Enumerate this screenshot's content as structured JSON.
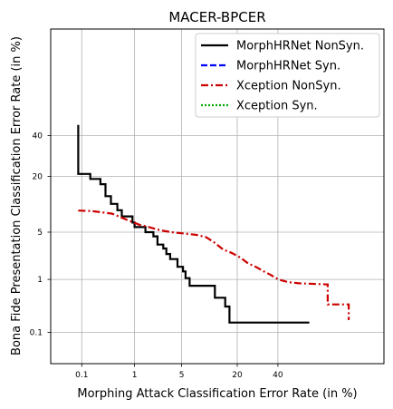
{
  "chart_data": {
    "type": "line",
    "title": "MACER-BPCER",
    "xlabel": "Morphing Attack Classification Error Rate (in %)",
    "ylabel": "Bona Fide Presentation Classification Error Rate (in %)",
    "x_scale": "probit",
    "y_scale": "probit",
    "xlim": [
      0.02,
      90
    ],
    "ylim": [
      0.02,
      90
    ],
    "x_ticks": [
      "0.1",
      "1",
      "5",
      "20",
      "40"
    ],
    "y_ticks": [
      "0.1",
      "1",
      "5",
      "20",
      "40"
    ],
    "x_tick_values": [
      0.1,
      1,
      5,
      20,
      40
    ],
    "y_tick_values": [
      0.1,
      1,
      5,
      20,
      40
    ],
    "grid": true,
    "legend_position": "top-right",
    "series": [
      {
        "name": "MorphHRNet NonSyn.",
        "color": "#000000",
        "style": "solid",
        "points": [
          [
            0.084,
            46
          ],
          [
            0.084,
            21
          ],
          [
            0.15,
            21
          ],
          [
            0.15,
            19
          ],
          [
            0.24,
            19
          ],
          [
            0.24,
            17
          ],
          [
            0.3,
            17
          ],
          [
            0.3,
            13
          ],
          [
            0.38,
            13
          ],
          [
            0.38,
            10.8
          ],
          [
            0.5,
            10.8
          ],
          [
            0.5,
            9.2
          ],
          [
            0.6,
            9.2
          ],
          [
            0.6,
            7.8
          ],
          [
            0.92,
            7.8
          ],
          [
            0.92,
            6.6
          ],
          [
            1.0,
            6.6
          ],
          [
            1.0,
            5.8
          ],
          [
            1.5,
            5.8
          ],
          [
            1.5,
            5.0
          ],
          [
            2.0,
            5.0
          ],
          [
            2.0,
            4.4
          ],
          [
            2.3,
            4.4
          ],
          [
            2.3,
            3.4
          ],
          [
            2.8,
            3.4
          ],
          [
            2.8,
            3.0
          ],
          [
            3.1,
            3.0
          ],
          [
            3.1,
            2.5
          ],
          [
            3.5,
            2.5
          ],
          [
            3.5,
            2.1
          ],
          [
            4.4,
            2.1
          ],
          [
            4.4,
            1.6
          ],
          [
            5.2,
            1.6
          ],
          [
            5.2,
            1.35
          ],
          [
            5.6,
            1.35
          ],
          [
            5.6,
            1.05
          ],
          [
            6.3,
            1.05
          ],
          [
            6.3,
            0.78
          ],
          [
            12.2,
            0.78
          ],
          [
            12.2,
            0.48
          ],
          [
            15.5,
            0.48
          ],
          [
            15.5,
            0.33
          ],
          [
            17,
            0.33
          ],
          [
            17,
            0.16
          ],
          [
            58,
            0.16
          ]
        ]
      },
      {
        "name": "MorphHRNet Syn.",
        "color": "#0000ff",
        "style": "dashed",
        "points": []
      },
      {
        "name": "Xception NonSyn.",
        "color": "#cc0000",
        "style": "dashdot",
        "points": [
          [
            0.084,
            9.1
          ],
          [
            0.16,
            9.0
          ],
          [
            0.4,
            8.4
          ],
          [
            0.75,
            7.1
          ],
          [
            1.2,
            6.2
          ],
          [
            1.7,
            5.8
          ],
          [
            2.5,
            5.3
          ],
          [
            3.6,
            5.0
          ],
          [
            5.4,
            4.8
          ],
          [
            7.6,
            4.6
          ],
          [
            9.8,
            4.3
          ],
          [
            12.2,
            3.6
          ],
          [
            14.8,
            2.9
          ],
          [
            17.8,
            2.6
          ],
          [
            21.4,
            2.2
          ],
          [
            24.8,
            1.8
          ],
          [
            28.3,
            1.6
          ],
          [
            32.4,
            1.35
          ],
          [
            35.8,
            1.2
          ],
          [
            40.2,
            1.0
          ],
          [
            45.8,
            0.9
          ],
          [
            52,
            0.86
          ],
          [
            65,
            0.83
          ],
          [
            68,
            0.82
          ],
          [
            68,
            0.36
          ],
          [
            74,
            0.36
          ],
          [
            78,
            0.36
          ],
          [
            78,
            0.18
          ]
        ]
      },
      {
        "name": "Xception Syn.",
        "color": "#00aa00",
        "style": "dotted",
        "points": []
      }
    ]
  }
}
